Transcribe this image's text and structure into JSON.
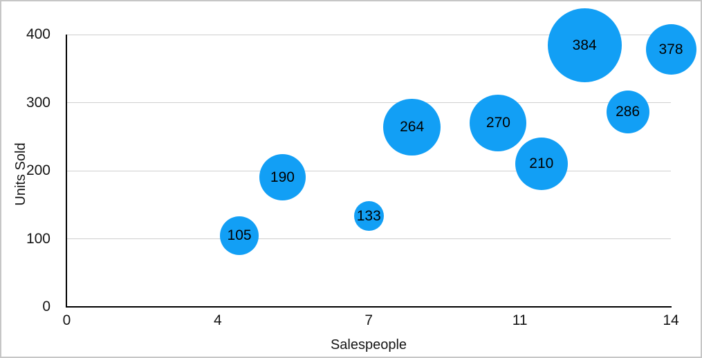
{
  "chart_data": {
    "type": "scatter",
    "subtype": "bubble",
    "title": "",
    "xlabel": "Salespeople",
    "ylabel": "Units Sold",
    "xlim": [
      0,
      14
    ],
    "ylim": [
      0,
      400
    ],
    "grid": "horizontal",
    "legend": "none",
    "x_ticks": [
      {
        "value": 0,
        "label": "0"
      },
      {
        "value": 3.5,
        "label": "4"
      },
      {
        "value": 7,
        "label": "7"
      },
      {
        "value": 10.5,
        "label": "11"
      },
      {
        "value": 14,
        "label": "14"
      }
    ],
    "y_ticks": [
      {
        "value": 0,
        "label": "0"
      },
      {
        "value": 100,
        "label": "100"
      },
      {
        "value": 200,
        "label": "200"
      },
      {
        "value": 300,
        "label": "300"
      },
      {
        "value": 400,
        "label": "400"
      }
    ],
    "points": [
      {
        "x": 4,
        "y": 105,
        "label": "105",
        "radius_px": 28
      },
      {
        "x": 5,
        "y": 190,
        "label": "190",
        "radius_px": 33.5
      },
      {
        "x": 7,
        "y": 133,
        "label": "133",
        "radius_px": 21.5
      },
      {
        "x": 8,
        "y": 264,
        "label": "264",
        "radius_px": 41.3
      },
      {
        "x": 10,
        "y": 270,
        "label": "270",
        "radius_px": 41
      },
      {
        "x": 11,
        "y": 210,
        "label": "210",
        "radius_px": 38.3
      },
      {
        "x": 12,
        "y": 384,
        "label": "384",
        "radius_px": 53.5
      },
      {
        "x": 13,
        "y": 286,
        "label": "286",
        "radius_px": 31
      },
      {
        "x": 14,
        "y": 378,
        "label": "378",
        "radius_px": 36.5
      }
    ],
    "colors": {
      "bubble_fill": "#129FF5",
      "bubble_label": "#000000",
      "axis_line": "#000000",
      "gridline": "#CFCFCF",
      "tick_label": "#141414",
      "background": "#FFFFFF",
      "frame_border": "#C6C6C6"
    }
  }
}
